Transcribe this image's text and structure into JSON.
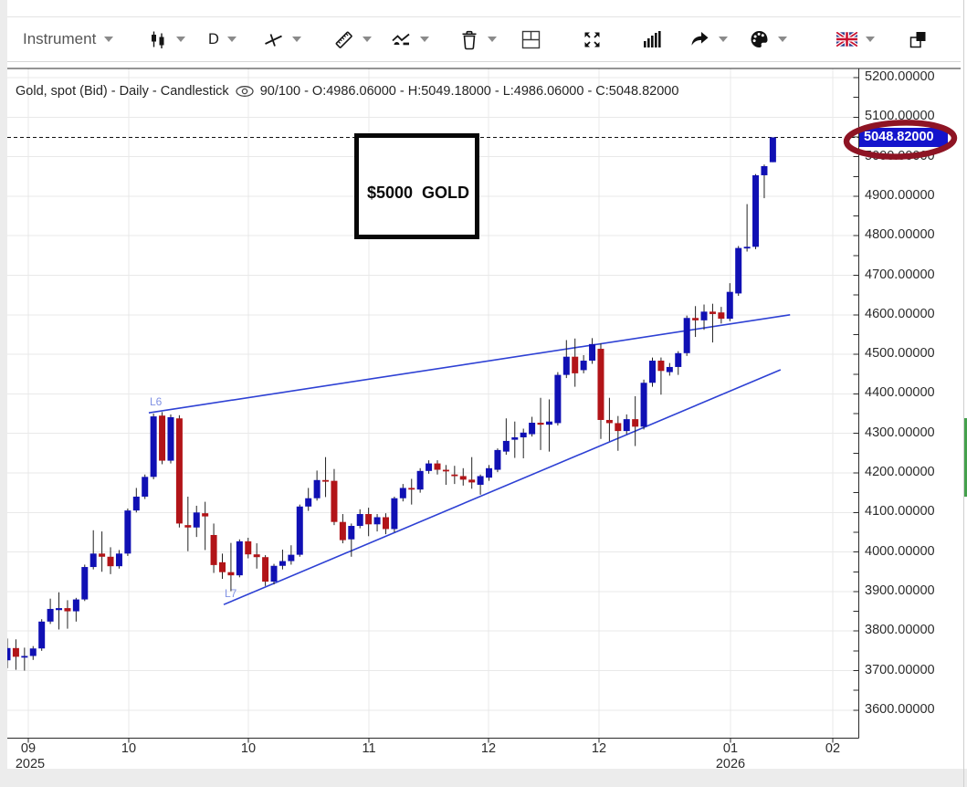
{
  "toolbar": {
    "instrument_label": "Instrument",
    "timeframe_label": "D",
    "icons": [
      "chart-style-candlestick",
      "timeframe-select",
      "trend-line-tool",
      "ruler-tool",
      "indicator-tool",
      "delete-tool",
      "split-panel",
      "fullscreen",
      "volume-toggle",
      "share",
      "theme-palette",
      "language-english-uk",
      "bring-to-front"
    ]
  },
  "chart_header": {
    "title_main": "Gold, spot (Bid) - Daily - Candlestick",
    "visible_candles": "90/100",
    "title_ohlc": "90/100 - O:4986.06000 - H:5049.18000 - L:4986.06000 - C:5048.82000"
  },
  "price_axis": {
    "badge": "5048.82000",
    "badge_color": "#1414cc",
    "labels": [
      "5200.00000",
      "5100.00000",
      "5000.00000",
      "4900.00000",
      "4800.00000",
      "4700.00000",
      "4600.00000",
      "4500.00000",
      "4400.00000",
      "4300.00000",
      "4200.00000",
      "4100.00000",
      "4000.00000",
      "3900.00000",
      "3800.00000",
      "3700.00000",
      "3600.00000"
    ]
  },
  "time_axis": {
    "ticks": [
      {
        "label": "09",
        "x": 31
      },
      {
        "label": "10",
        "x": 141
      },
      {
        "label": "10",
        "x": 272
      },
      {
        "label": "11",
        "x": 404
      },
      {
        "label": "12",
        "x": 535
      },
      {
        "label": "12",
        "x": 656
      },
      {
        "label": "01",
        "x": 800
      },
      {
        "label": "02",
        "x": 912
      }
    ],
    "years": [
      {
        "label": "2025",
        "x": 33
      },
      {
        "label": "2026",
        "x": 800
      }
    ]
  },
  "chart_data": {
    "type": "candlestick",
    "title": "Gold, spot (Bid) - Daily - Candlestick",
    "instrument": "Gold, spot (Bid)",
    "timeframe": "Daily",
    "visible_range": "90/100",
    "ohlc_last": {
      "open": 4986.06,
      "high": 5049.18,
      "low": 4986.06,
      "close": 5048.82
    },
    "current_price": 5048.82,
    "up_color": "#1010b4",
    "down_color": "#b21418",
    "wick_color": "#222222",
    "trendline_color": "#2e41d4",
    "grid_color": "#e9e9e9",
    "ylim": [
      3600,
      5200
    ],
    "y_tick_step": 100,
    "y_minor_tick_step": 50,
    "x_months": [
      "09",
      "10",
      "10",
      "11",
      "12",
      "12",
      "01",
      "02"
    ],
    "years": [
      "2025",
      "2026"
    ],
    "candles": [
      [
        3726,
        3781,
        3706,
        3757
      ],
      [
        3757,
        3779,
        3702,
        3735
      ],
      [
        3735,
        3758,
        3700,
        3737
      ],
      [
        3737,
        3762,
        3727,
        3756
      ],
      [
        3756,
        3830,
        3750,
        3824
      ],
      [
        3824,
        3882,
        3818,
        3856
      ],
      [
        3853,
        3898,
        3804,
        3858
      ],
      [
        3858,
        3878,
        3806,
        3850
      ],
      [
        3850,
        3884,
        3824,
        3880
      ],
      [
        3880,
        3968,
        3876,
        3962
      ],
      [
        3962,
        4055,
        3956,
        3996
      ],
      [
        3996,
        4052,
        3950,
        3988
      ],
      [
        3988,
        4012,
        3944,
        3964
      ],
      [
        3964,
        4005,
        3958,
        3996
      ],
      [
        3996,
        4110,
        3990,
        4105
      ],
      [
        4105,
        4162,
        4100,
        4140
      ],
      [
        4140,
        4196,
        4134,
        4190
      ],
      [
        4190,
        4350,
        4184,
        4343
      ],
      [
        4345,
        4354,
        4222,
        4231
      ],
      [
        4231,
        4348,
        4224,
        4341
      ],
      [
        4338,
        4346,
        4062,
        4072
      ],
      [
        4068,
        4140,
        4002,
        4062
      ],
      [
        4062,
        4117,
        4038,
        4100
      ],
      [
        4098,
        4127,
        4005,
        4090
      ],
      [
        4043,
        4072,
        3947,
        3967
      ],
      [
        3974,
        3996,
        3932,
        3949
      ],
      [
        3949,
        4023,
        3901,
        3941
      ],
      [
        3941,
        4032,
        3936,
        4027
      ],
      [
        4027,
        4036,
        3984,
        3994
      ],
      [
        3994,
        4022,
        3958,
        3987
      ],
      [
        3987,
        3992,
        3914,
        3925
      ],
      [
        3925,
        3970,
        3918,
        3965
      ],
      [
        3965,
        4006,
        3956,
        3977
      ],
      [
        3977,
        4017,
        3968,
        3993
      ],
      [
        3993,
        4120,
        3988,
        4115
      ],
      [
        4115,
        4162,
        4104,
        4136
      ],
      [
        4136,
        4206,
        4130,
        4182
      ],
      [
        4182,
        4240,
        4139,
        4180
      ],
      [
        4180,
        4210,
        4068,
        4076
      ],
      [
        4076,
        4096,
        4022,
        4030
      ],
      [
        4032,
        4072,
        3988,
        4066
      ],
      [
        4066,
        4108,
        4060,
        4096
      ],
      [
        4096,
        4112,
        4040,
        4070
      ],
      [
        4070,
        4096,
        4052,
        4088
      ],
      [
        4088,
        4098,
        4045,
        4058
      ],
      [
        4058,
        4140,
        4050,
        4136
      ],
      [
        4136,
        4172,
        4128,
        4162
      ],
      [
        4162,
        4185,
        4120,
        4158
      ],
      [
        4158,
        4212,
        4150,
        4205
      ],
      [
        4205,
        4232,
        4198,
        4224
      ],
      [
        4224,
        4232,
        4196,
        4208
      ],
      [
        4208,
        4220,
        4170,
        4205
      ],
      [
        4196,
        4218,
        4172,
        4192
      ],
      [
        4192,
        4212,
        4168,
        4183
      ],
      [
        4183,
        4240,
        4160,
        4176
      ],
      [
        4170,
        4196,
        4145,
        4192
      ],
      [
        4188,
        4220,
        4180,
        4212
      ],
      [
        4208,
        4262,
        4202,
        4258
      ],
      [
        4254,
        4338,
        4246,
        4281
      ],
      [
        4284,
        4330,
        4238,
        4290
      ],
      [
        4290,
        4312,
        4237,
        4302
      ],
      [
        4298,
        4342,
        4292,
        4327
      ],
      [
        4327,
        4390,
        4258,
        4322
      ],
      [
        4322,
        4386,
        4254,
        4330
      ],
      [
        4326,
        4455,
        4320,
        4448
      ],
      [
        4448,
        4536,
        4440,
        4494
      ],
      [
        4494,
        4540,
        4418,
        4452
      ],
      [
        4460,
        4498,
        4452,
        4484
      ],
      [
        4484,
        4541,
        4476,
        4526
      ],
      [
        4514,
        4528,
        4286,
        4334
      ],
      [
        4334,
        4390,
        4280,
        4326
      ],
      [
        4326,
        4344,
        4256,
        4306
      ],
      [
        4306,
        4348,
        4298,
        4336
      ],
      [
        4336,
        4394,
        4268,
        4317
      ],
      [
        4317,
        4436,
        4310,
        4428
      ],
      [
        4428,
        4492,
        4418,
        4484
      ],
      [
        4484,
        4492,
        4398,
        4458
      ],
      [
        4455,
        4478,
        4446,
        4468
      ],
      [
        4468,
        4508,
        4448,
        4503
      ],
      [
        4503,
        4598,
        4496,
        4592
      ],
      [
        4592,
        4622,
        4544,
        4586
      ],
      [
        4586,
        4626,
        4562,
        4608
      ],
      [
        4608,
        4628,
        4530,
        4602
      ],
      [
        4606,
        4620,
        4578,
        4590
      ],
      [
        4590,
        4680,
        4584,
        4658
      ],
      [
        4654,
        4774,
        4648,
        4769
      ],
      [
        4769,
        4880,
        4760,
        4772
      ],
      [
        4772,
        4956,
        4766,
        4953
      ],
      [
        4953,
        4980,
        4895,
        4976
      ],
      [
        4986.06,
        5049.18,
        4986.06,
        5048.82
      ]
    ],
    "trendlines": [
      {
        "label": "L6",
        "from": {
          "index": 16.45,
          "price": 4352
        },
        "to": {
          "index": 91.0,
          "price": 4600
        }
      },
      {
        "label": "L7",
        "from": {
          "index": 25.16,
          "price": 3867
        },
        "to": {
          "index": 89.9,
          "price": 4461
        }
      }
    ],
    "annotations": {
      "target_box": {
        "text": "$5000  GOLD"
      },
      "highlight_ellipse": {
        "around": "current-price-badge",
        "color": "#8e1424"
      }
    }
  }
}
